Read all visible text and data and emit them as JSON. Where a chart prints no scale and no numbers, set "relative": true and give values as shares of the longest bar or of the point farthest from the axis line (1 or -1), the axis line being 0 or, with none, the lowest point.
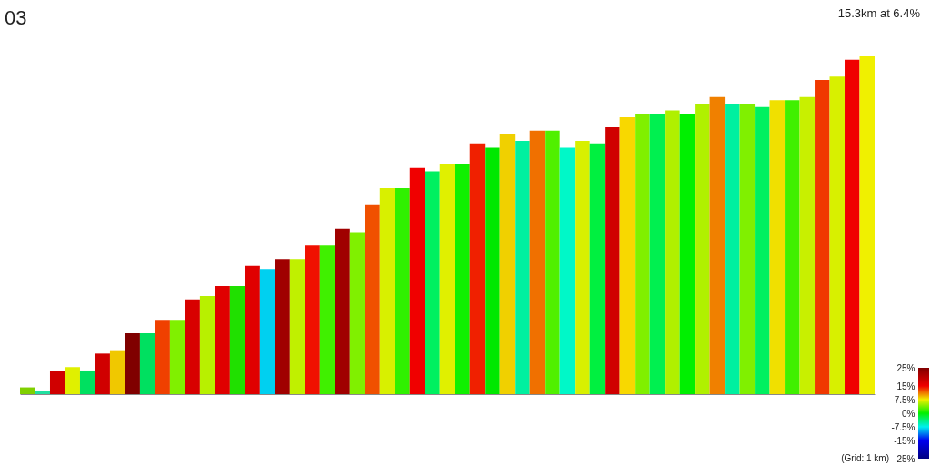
{
  "chart_data": {
    "type": "bar",
    "title": "03",
    "subtitle": "15.3km at 6.4%",
    "annotations": [
      "(Grid: 1 km)"
    ],
    "relative": true,
    "categories": [
      null,
      null,
      null,
      null,
      null,
      null,
      null,
      null,
      null,
      null,
      null,
      null,
      null,
      null,
      null,
      null,
      null,
      null,
      null,
      null,
      null,
      null,
      null,
      null,
      null,
      null,
      null,
      null,
      null,
      null,
      null,
      null,
      null,
      null,
      null,
      null,
      null,
      null,
      null,
      null,
      null,
      null,
      null,
      null,
      null,
      null,
      null,
      null,
      null,
      null,
      null,
      null,
      null,
      null,
      null,
      null,
      null
    ],
    "values": [
      0.02,
      0.01,
      0.07,
      0.08,
      0.07,
      0.12,
      0.13,
      0.18,
      0.18,
      0.22,
      0.22,
      0.28,
      0.29,
      0.32,
      0.32,
      0.38,
      0.37,
      0.4,
      0.4,
      0.44,
      0.44,
      0.49,
      0.48,
      0.56,
      0.61,
      0.61,
      0.67,
      0.66,
      0.68,
      0.68,
      0.74,
      0.73,
      0.77,
      0.75,
      0.78,
      0.78,
      0.73,
      0.75,
      0.74,
      0.79,
      0.82,
      0.83,
      0.83,
      0.84,
      0.83,
      0.86,
      0.88,
      0.86,
      0.86,
      0.85,
      0.87,
      0.87,
      0.88,
      0.93,
      0.94,
      0.99,
      1
    ],
    "colors": [
      "#80d000",
      "#20e0a0",
      "#d00000",
      "#e0f000",
      "#00e060",
      "#d00000",
      "#f0c800",
      "#800000",
      "#00e060",
      "#f04000",
      "#80f000",
      "#d80000",
      "#b8f000",
      "#e00000",
      "#20e000",
      "#e00000",
      "#00d0f0",
      "#a00000",
      "#c0f000",
      "#f01000",
      "#40f000",
      "#a00000",
      "#80f000",
      "#f05000",
      "#d8f000",
      "#30f000",
      "#f00000",
      "#00f060",
      "#e0f000",
      "#10f000",
      "#f02000",
      "#00e800",
      "#f0d000",
      "#00f0a0",
      "#f07000",
      "#50f000",
      "#00f8c8",
      "#d8f000",
      "#00f040",
      "#d00000",
      "#f8d800",
      "#80f000",
      "#00f050",
      "#b0f000",
      "#00f000",
      "#b0f000",
      "#f08000",
      "#00f0a0",
      "#80f000",
      "#00f060",
      "#f0e000",
      "#40f000",
      "#c8f000",
      "#f03800",
      "#d8f000",
      "#f00000",
      "#f0f000"
    ],
    "clim": [
      -25,
      25
    ],
    "cticks": [
      {
        "value": -25,
        "label": "-25%"
      },
      {
        "value": -15,
        "label": "-15%"
      },
      {
        "value": -7.5,
        "label": "-7.5%"
      },
      {
        "value": 0,
        "label": "0%"
      },
      {
        "value": 7.5,
        "label": "7.5%"
      },
      {
        "value": 15,
        "label": "15%"
      },
      {
        "value": 25,
        "label": "25%"
      }
    ]
  }
}
